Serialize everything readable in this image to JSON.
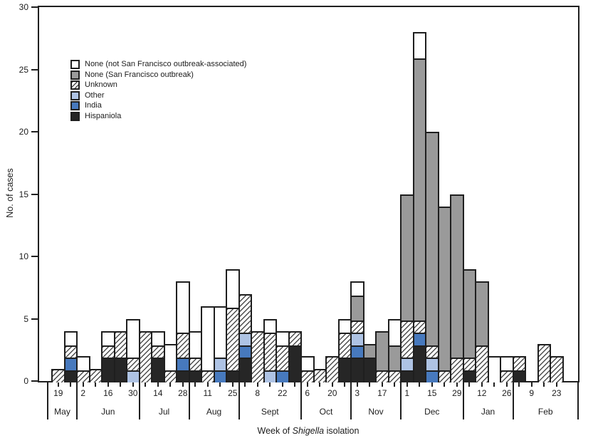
{
  "figure": {
    "ylabel": "No. of cases",
    "xlabel_prefix": "Week of ",
    "xlabel_italic": "Shigella",
    "xlabel_suffix": " isolation"
  },
  "colors": {
    "line": "#1f1f1f",
    "none_white": "#ffffff",
    "none_sf": "#9a9a9a",
    "unknown_hatch_line": "#4d4d4d",
    "other": "#aec3e4",
    "india": "#4779bd",
    "hispaniola": "#262626"
  },
  "legend": {
    "items": [
      {
        "label": "None (not San Francisco outbreak-associated)",
        "swatch": "white",
        "key": "none_white"
      },
      {
        "label": "None (San Francisco outbreak)",
        "swatch": "gray",
        "key": "none_sf"
      },
      {
        "label": "Unknown",
        "swatch": "hatch",
        "key": "unknown"
      },
      {
        "label": "Other",
        "swatch": "lightblue",
        "key": "other"
      },
      {
        "label": "India",
        "swatch": "blue",
        "key": "india"
      },
      {
        "label": "Hispaniola",
        "swatch": "black",
        "key": "hispaniola"
      }
    ]
  },
  "chart_data": {
    "type": "bar",
    "stacked": true,
    "grid": false,
    "legend_position": "top-left inside plot",
    "ylabel": "No. of cases",
    "xlabel": "Week of Shigella isolation",
    "ylim": [
      0,
      30
    ],
    "yticks": [
      0,
      5,
      10,
      15,
      20,
      25,
      30
    ],
    "stack_order": [
      "hispaniola",
      "india",
      "other",
      "unknown",
      "none_sf",
      "none_white"
    ],
    "months": [
      {
        "label": "May",
        "weeks": [
          {
            "tick": "19",
            "values": {
              "unknown": 1
            }
          },
          {
            "tick": "",
            "values": {
              "hispaniola": 1,
              "india": 1,
              "unknown": 1,
              "none_white": 1
            }
          }
        ]
      },
      {
        "label": "Jun",
        "weeks": [
          {
            "tick": "2",
            "values": {
              "unknown": 1,
              "none_white": 1
            }
          },
          {
            "tick": "",
            "values": {
              "unknown": 1
            }
          },
          {
            "tick": "16",
            "values": {
              "hispaniola": 2,
              "unknown": 1,
              "none_white": 1
            }
          },
          {
            "tick": "",
            "values": {
              "hispaniola": 2,
              "unknown": 2
            }
          },
          {
            "tick": "30",
            "values": {
              "other": 1,
              "unknown": 1,
              "none_white": 3
            }
          }
        ]
      },
      {
        "label": "Jul",
        "weeks": [
          {
            "tick": "",
            "values": {
              "unknown": 4
            }
          },
          {
            "tick": "14",
            "values": {
              "hispaniola": 2,
              "unknown": 1,
              "none_white": 1
            }
          },
          {
            "tick": "",
            "values": {
              "unknown": 1,
              "none_white": 2
            }
          },
          {
            "tick": "28",
            "values": {
              "hispaniola": 1,
              "india": 1,
              "unknown": 2,
              "none_white": 4
            }
          }
        ]
      },
      {
        "label": "Aug",
        "weeks": [
          {
            "tick": "",
            "values": {
              "hispaniola": 1,
              "unknown": 1,
              "none_white": 2
            }
          },
          {
            "tick": "11",
            "values": {
              "unknown": 1,
              "none_white": 5
            }
          },
          {
            "tick": "",
            "values": {
              "india": 1,
              "other": 1,
              "none_white": 4
            }
          },
          {
            "tick": "25",
            "values": {
              "hispaniola": 1,
              "unknown": 5,
              "none_white": 3
            }
          }
        ]
      },
      {
        "label": "Sept",
        "weeks": [
          {
            "tick": "",
            "values": {
              "hispaniola": 2,
              "india": 1,
              "other": 1,
              "unknown": 3
            }
          },
          {
            "tick": "8",
            "values": {
              "unknown": 4
            }
          },
          {
            "tick": "",
            "values": {
              "other": 1,
              "unknown": 3,
              "none_white": 1
            }
          },
          {
            "tick": "22",
            "values": {
              "india": 1,
              "unknown": 2,
              "none_white": 1
            }
          },
          {
            "tick": "",
            "values": {
              "hispaniola": 3,
              "unknown": 1
            }
          }
        ]
      },
      {
        "label": "Oct",
        "weeks": [
          {
            "tick": "6",
            "values": {
              "unknown": 1,
              "none_white": 1
            }
          },
          {
            "tick": "",
            "values": {
              "unknown": 1
            }
          },
          {
            "tick": "20",
            "values": {
              "unknown": 2
            }
          },
          {
            "tick": "",
            "values": {
              "hispaniola": 2,
              "unknown": 2,
              "none_white": 1
            }
          }
        ]
      },
      {
        "label": "Nov",
        "weeks": [
          {
            "tick": "3",
            "values": {
              "hispaniola": 2,
              "india": 1,
              "other": 1,
              "unknown": 1,
              "none_sf": 2,
              "none_white": 1
            }
          },
          {
            "tick": "",
            "values": {
              "hispaniola": 2,
              "none_sf": 1
            }
          },
          {
            "tick": "17",
            "values": {
              "unknown": 1,
              "none_sf": 3
            }
          },
          {
            "tick": "",
            "values": {
              "unknown": 1,
              "none_sf": 2,
              "none_white": 2
            }
          }
        ]
      },
      {
        "label": "Dec",
        "weeks": [
          {
            "tick": "1",
            "values": {
              "hispaniola": 1,
              "other": 1,
              "unknown": 3,
              "none_sf": 10
            }
          },
          {
            "tick": "",
            "values": {
              "hispaniola": 3,
              "india": 1,
              "unknown": 1,
              "none_sf": 21,
              "none_white": 2
            }
          },
          {
            "tick": "15",
            "values": {
              "india": 1,
              "other": 1,
              "unknown": 1,
              "none_sf": 17
            }
          },
          {
            "tick": "",
            "values": {
              "unknown": 1,
              "none_sf": 13
            }
          },
          {
            "tick": "29",
            "values": {
              "unknown": 2,
              "none_sf": 13
            }
          }
        ]
      },
      {
        "label": "Jan",
        "weeks": [
          {
            "tick": "",
            "values": {
              "hispaniola": 1,
              "unknown": 1,
              "none_sf": 7
            }
          },
          {
            "tick": "12",
            "values": {
              "unknown": 3,
              "none_sf": 5
            }
          },
          {
            "tick": "",
            "values": {
              "none_white": 2
            }
          },
          {
            "tick": "26",
            "values": {
              "unknown": 1,
              "none_white": 1
            }
          }
        ]
      },
      {
        "label": "Feb",
        "weeks": [
          {
            "tick": "",
            "values": {
              "hispaniola": 1,
              "unknown": 1
            }
          },
          {
            "tick": "9",
            "values": {}
          },
          {
            "tick": "",
            "values": {
              "unknown": 3
            }
          },
          {
            "tick": "23",
            "values": {
              "unknown": 2
            }
          }
        ]
      }
    ]
  }
}
